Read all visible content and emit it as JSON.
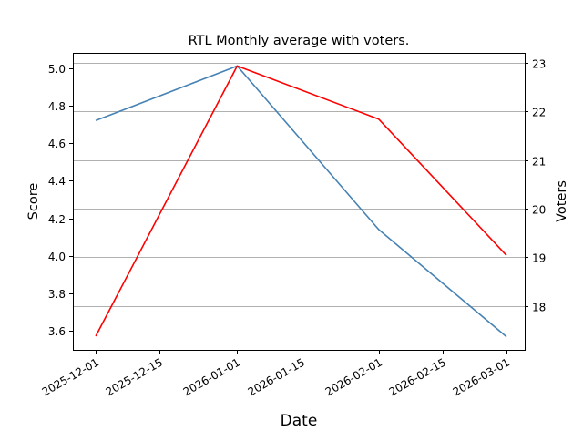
{
  "chart_data": {
    "type": "line",
    "title": "RTL Monthly average with voters.",
    "xlabel": "Date",
    "ylabel": "Score",
    "ylabel_right": "Voters",
    "x": [
      "2025-12-01",
      "2026-01-01",
      "2026-02-01",
      "2026-03-01"
    ],
    "x_ticks": [
      "2025-12-01",
      "2025-12-15",
      "2026-01-01",
      "2026-01-15",
      "2026-02-01",
      "2026-02-15",
      "2026-03-01"
    ],
    "xlim": [
      "2025-11-26",
      "2026-03-05"
    ],
    "ylim": [
      3.5,
      5.08
    ],
    "ylim_right": [
      17.1,
      23.2
    ],
    "y_ticks": [
      "3.6",
      "3.8",
      "4.0",
      "4.2",
      "4.4",
      "4.6",
      "4.8",
      "5.0"
    ],
    "y_ticks_right": [
      "18",
      "19",
      "20",
      "21",
      "22",
      "23"
    ],
    "grid": true,
    "series": [
      {
        "name": "Score",
        "axis": "left",
        "color": "#4682b4",
        "values": [
          4.72,
          5.01,
          4.14,
          3.57
        ]
      },
      {
        "name": "Voters",
        "axis": "right",
        "color": "#ff0000",
        "values": [
          17.38,
          22.93,
          21.84,
          19.04
        ]
      }
    ]
  }
}
